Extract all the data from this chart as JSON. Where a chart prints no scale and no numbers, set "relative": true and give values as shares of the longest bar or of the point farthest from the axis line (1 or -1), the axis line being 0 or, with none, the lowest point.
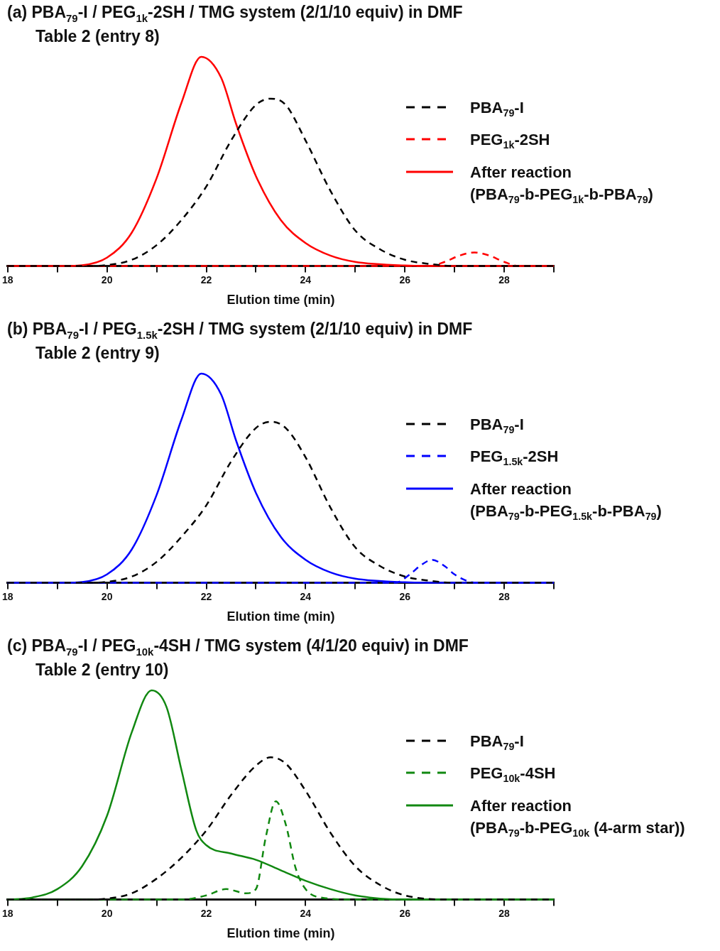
{
  "chart_data": [
    {
      "type": "line",
      "title": "(a) PBA$_{79}$-I / PEG$_{1k}$-2SH / TMG system (2/1/10 equiv) in DMF",
      "subtitle": "Table 2 (entry 8)",
      "xlabel": "Elution time (min)",
      "relative": true,
      "legend": "right",
      "xlim": [
        18,
        29
      ],
      "xticks": [
        18,
        {
          "value": 19,
          "label": null
        },
        20,
        {
          "value": 21,
          "label": null
        },
        22,
        {
          "value": 23,
          "label": null
        },
        24,
        {
          "value": 25,
          "label": null
        },
        26,
        {
          "value": 27,
          "label": null
        },
        28,
        {
          "value": 29,
          "label": null
        }
      ],
      "series": [
        {
          "name": "PBA$_{79}$-I",
          "color": "#000000",
          "line_style": "dashed",
          "x": [
            18,
            19.5,
            20,
            20.5,
            21,
            21.5,
            22,
            22.5,
            23,
            23.3,
            23.6,
            24,
            24.5,
            25,
            25.5,
            26,
            26.5,
            27,
            29
          ],
          "values": [
            0,
            0,
            0.005,
            0.03,
            0.1,
            0.22,
            0.38,
            0.6,
            0.77,
            0.8,
            0.77,
            0.6,
            0.36,
            0.17,
            0.08,
            0.03,
            0.01,
            0,
            0
          ]
        },
        {
          "name": "PEG$_{1k}$-2SH",
          "color": "#ff0000",
          "line_style": "dashed",
          "x": [
            18,
            26.5,
            26.8,
            27.1,
            27.4,
            27.7,
            28,
            28.3,
            29
          ],
          "values": [
            0,
            0,
            0.02,
            0.05,
            0.065,
            0.05,
            0.02,
            0,
            0
          ]
        },
        {
          "name": "After reaction\n(PBA$_{79}$-b-PEG$_{1k}$-b-PBA$_{79}$)",
          "color": "#ff0000",
          "line_style": "solid",
          "x": [
            18,
            19,
            19.5,
            20,
            20.5,
            21,
            21.5,
            21.9,
            22.3,
            22.6,
            23,
            23.5,
            24,
            24.5,
            25,
            26,
            27,
            29
          ],
          "values": [
            0,
            0,
            0.004,
            0.04,
            0.16,
            0.42,
            0.78,
            1,
            0.9,
            0.68,
            0.43,
            0.22,
            0.11,
            0.05,
            0.02,
            0.003,
            0,
            0
          ]
        }
      ]
    },
    {
      "type": "line",
      "title": "(b) PBA$_{79}$-I / PEG$_{1.5k}$-2SH / TMG system (2/1/10 equiv) in DMF",
      "subtitle": "Table 2 (entry 9)",
      "xlabel": "Elution time (min)",
      "relative": true,
      "legend": "right",
      "xlim": [
        18,
        29
      ],
      "xticks": [
        18,
        {
          "value": 19,
          "label": null
        },
        20,
        {
          "value": 21,
          "label": null
        },
        22,
        {
          "value": 23,
          "label": null
        },
        24,
        {
          "value": 25,
          "label": null
        },
        26,
        {
          "value": 27,
          "label": null
        },
        28,
        {
          "value": 29,
          "label": null
        }
      ],
      "series": [
        {
          "name": "PBA$_{79}$-I",
          "color": "#000000",
          "line_style": "dashed",
          "x": [
            18,
            19.5,
            20,
            20.5,
            21,
            21.5,
            22,
            22.5,
            23,
            23.3,
            23.6,
            24,
            24.5,
            25,
            25.5,
            26,
            26.5,
            27,
            29
          ],
          "values": [
            0,
            0,
            0.005,
            0.03,
            0.1,
            0.22,
            0.37,
            0.58,
            0.74,
            0.77,
            0.74,
            0.6,
            0.36,
            0.17,
            0.08,
            0.03,
            0.01,
            0,
            0
          ]
        },
        {
          "name": "PEG$_{1.5k}$-2SH",
          "color": "#0000ff",
          "line_style": "dashed",
          "x": [
            18,
            25.8,
            26.1,
            26.3,
            26.55,
            26.8,
            27,
            27.3,
            27.5,
            29
          ],
          "values": [
            0,
            0,
            0.04,
            0.08,
            0.11,
            0.08,
            0.04,
            0.005,
            0,
            0
          ]
        },
        {
          "name": "After reaction\n(PBA$_{79}$-b-PEG$_{1.5k}$-b-PBA$_{79}$)",
          "color": "#0000ff",
          "line_style": "solid",
          "x": [
            18,
            19,
            19.5,
            20,
            20.5,
            21,
            21.5,
            21.9,
            22.3,
            22.6,
            23,
            23.5,
            24,
            24.5,
            25,
            26,
            27,
            29
          ],
          "values": [
            0,
            0,
            0.004,
            0.04,
            0.16,
            0.42,
            0.78,
            1,
            0.9,
            0.68,
            0.43,
            0.22,
            0.11,
            0.05,
            0.02,
            0.003,
            0,
            0
          ]
        }
      ]
    },
    {
      "type": "line",
      "title": "(c) PBA$_{79}$-I / PEG$_{10k}$-4SH / TMG system (4/1/20 equiv) in DMF",
      "subtitle": "Table 2 (entry 10)",
      "xlabel": "Elution time (min)",
      "relative": true,
      "legend": "right",
      "xlim": [
        18,
        29
      ],
      "xticks": [
        18,
        {
          "value": 19,
          "label": null
        },
        20,
        {
          "value": 21,
          "label": null
        },
        22,
        {
          "value": 23,
          "label": null
        },
        24,
        {
          "value": 25,
          "label": null
        },
        26,
        {
          "value": 27,
          "label": null
        },
        28,
        {
          "value": 29,
          "label": null
        }
      ],
      "series": [
        {
          "name": "PBA$_{79}$-I",
          "color": "#000000",
          "line_style": "dashed",
          "x": [
            18,
            19.5,
            20,
            20.5,
            21,
            21.5,
            22,
            22.5,
            23,
            23.3,
            23.6,
            24,
            24.5,
            25,
            25.5,
            26,
            27,
            29
          ],
          "values": [
            0,
            0,
            0.005,
            0.03,
            0.1,
            0.2,
            0.33,
            0.5,
            0.64,
            0.68,
            0.65,
            0.52,
            0.32,
            0.16,
            0.07,
            0.02,
            0,
            0
          ]
        },
        {
          "name": "PEG$_{10k}$-4SH",
          "color": "#118811",
          "line_style": "dashed",
          "x": [
            18,
            21.5,
            22,
            22.4,
            22.8,
            23,
            23.2,
            23.4,
            23.6,
            23.8,
            24,
            24.3,
            25,
            29
          ],
          "values": [
            0,
            0,
            0.02,
            0.05,
            0.03,
            0.05,
            0.3,
            0.47,
            0.36,
            0.15,
            0.05,
            0.01,
            0,
            0
          ]
        },
        {
          "name": "After reaction\n(PBA$_{79}$-b-PEG$_{10k}$ (4-arm star))",
          "color": "#118811",
          "line_style": "solid",
          "x": [
            18,
            18.5,
            19,
            19.5,
            20,
            20.5,
            20.9,
            21.2,
            21.5,
            21.8,
            22,
            22.5,
            23,
            23.5,
            24,
            24.5,
            25,
            25.5,
            26,
            29
          ],
          "values": [
            0,
            0.01,
            0.05,
            0.16,
            0.4,
            0.8,
            1,
            0.92,
            0.62,
            0.33,
            0.26,
            0.22,
            0.19,
            0.14,
            0.09,
            0.05,
            0.02,
            0.005,
            0,
            0
          ]
        }
      ]
    }
  ]
}
